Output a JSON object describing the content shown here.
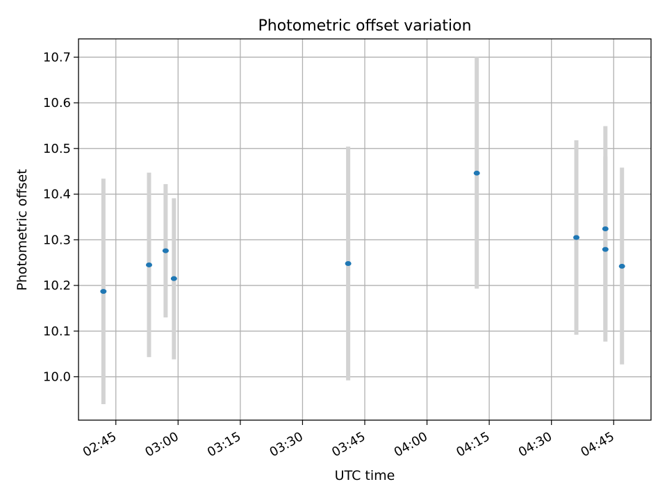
{
  "chart_data": {
    "type": "scatter",
    "title": "Photometric offset variation",
    "xlabel": "UTC time",
    "ylabel": "Photometric offset",
    "x_ticks": [
      "02:45",
      "03:00",
      "03:15",
      "03:30",
      "03:45",
      "04:00",
      "04:15",
      "04:30",
      "04:45"
    ],
    "y_ticks": [
      "10.0",
      "10.1",
      "10.2",
      "10.3",
      "10.4",
      "10.5",
      "10.6",
      "10.7"
    ],
    "x_range": [
      "02:36",
      "04:54"
    ],
    "ylim": [
      9.905,
      10.74
    ],
    "grid": true,
    "legend": "none",
    "point_color": "#1f77b4",
    "errorbar_color": "#d3d3d3",
    "points": [
      {
        "x": "02:42",
        "y": 10.187,
        "ylow": 9.94,
        "yhigh": 10.434
      },
      {
        "x": "02:53",
        "y": 10.245,
        "ylow": 10.043,
        "yhigh": 10.447
      },
      {
        "x": "02:57",
        "y": 10.276,
        "ylow": 10.13,
        "yhigh": 10.422
      },
      {
        "x": "02:59",
        "y": 10.215,
        "ylow": 10.038,
        "yhigh": 10.391
      },
      {
        "x": "03:41",
        "y": 10.248,
        "ylow": 9.992,
        "yhigh": 10.504
      },
      {
        "x": "04:12",
        "y": 10.446,
        "ylow": 10.193,
        "yhigh": 10.7
      },
      {
        "x": "04:36",
        "y": 10.305,
        "ylow": 10.092,
        "yhigh": 10.518
      },
      {
        "x": "04:43",
        "y": 10.324,
        "ylow": 10.099,
        "yhigh": 10.549
      },
      {
        "x": "04:43",
        "y": 10.279,
        "ylow": 10.077,
        "yhigh": 10.482
      },
      {
        "x": "04:47",
        "y": 10.242,
        "ylow": 10.027,
        "yhigh": 10.458
      }
    ]
  }
}
